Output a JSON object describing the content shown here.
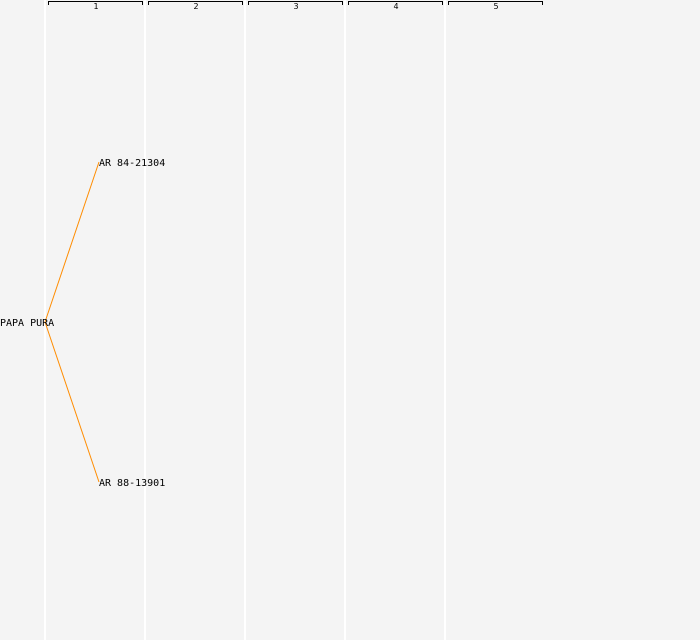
{
  "generations": [
    "1",
    "2",
    "3",
    "4",
    "5"
  ],
  "tree": {
    "root": "PAPA PURA",
    "parents": [
      "AR 84-21304",
      "AR 88-13901"
    ]
  },
  "colors": {
    "background": "#f4f4f4",
    "link": "#ff8c00",
    "column_line": "#ffffff",
    "text": "#000000"
  }
}
